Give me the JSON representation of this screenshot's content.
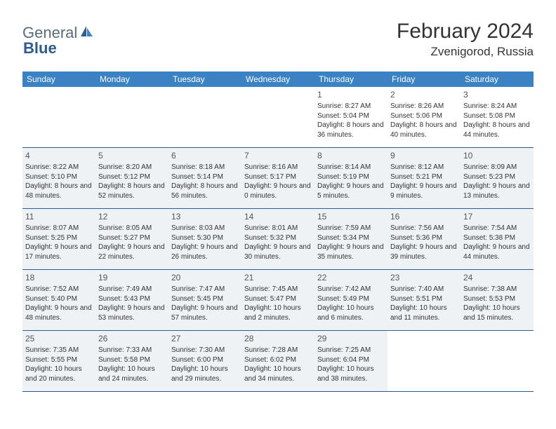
{
  "brand": {
    "part1": "General",
    "part2": "Blue"
  },
  "title": "February 2024",
  "location": "Zvenigorod, Russia",
  "colors": {
    "header_bg": "#3b82c4",
    "header_text": "#ffffff",
    "rule": "#2d5c8f",
    "shade": "#eef2f5",
    "text": "#333333",
    "logo_gray": "#5a6b7a",
    "logo_blue": "#2d5c8f"
  },
  "weekdays": [
    "Sunday",
    "Monday",
    "Tuesday",
    "Wednesday",
    "Thursday",
    "Friday",
    "Saturday"
  ],
  "weeks": [
    [
      {
        "day": "",
        "sunrise": "",
        "sunset": "",
        "daylight": "",
        "shaded": false
      },
      {
        "day": "",
        "sunrise": "",
        "sunset": "",
        "daylight": "",
        "shaded": false
      },
      {
        "day": "",
        "sunrise": "",
        "sunset": "",
        "daylight": "",
        "shaded": false
      },
      {
        "day": "",
        "sunrise": "",
        "sunset": "",
        "daylight": "",
        "shaded": false
      },
      {
        "day": "1",
        "sunrise": "Sunrise: 8:27 AM",
        "sunset": "Sunset: 5:04 PM",
        "daylight": "Daylight: 8 hours and 36 minutes.",
        "shaded": false
      },
      {
        "day": "2",
        "sunrise": "Sunrise: 8:26 AM",
        "sunset": "Sunset: 5:06 PM",
        "daylight": "Daylight: 8 hours and 40 minutes.",
        "shaded": false
      },
      {
        "day": "3",
        "sunrise": "Sunrise: 8:24 AM",
        "sunset": "Sunset: 5:08 PM",
        "daylight": "Daylight: 8 hours and 44 minutes.",
        "shaded": false
      }
    ],
    [
      {
        "day": "4",
        "sunrise": "Sunrise: 8:22 AM",
        "sunset": "Sunset: 5:10 PM",
        "daylight": "Daylight: 8 hours and 48 minutes.",
        "shaded": true
      },
      {
        "day": "5",
        "sunrise": "Sunrise: 8:20 AM",
        "sunset": "Sunset: 5:12 PM",
        "daylight": "Daylight: 8 hours and 52 minutes.",
        "shaded": true
      },
      {
        "day": "6",
        "sunrise": "Sunrise: 8:18 AM",
        "sunset": "Sunset: 5:14 PM",
        "daylight": "Daylight: 8 hours and 56 minutes.",
        "shaded": true
      },
      {
        "day": "7",
        "sunrise": "Sunrise: 8:16 AM",
        "sunset": "Sunset: 5:17 PM",
        "daylight": "Daylight: 9 hours and 0 minutes.",
        "shaded": true
      },
      {
        "day": "8",
        "sunrise": "Sunrise: 8:14 AM",
        "sunset": "Sunset: 5:19 PM",
        "daylight": "Daylight: 9 hours and 5 minutes.",
        "shaded": true
      },
      {
        "day": "9",
        "sunrise": "Sunrise: 8:12 AM",
        "sunset": "Sunset: 5:21 PM",
        "daylight": "Daylight: 9 hours and 9 minutes.",
        "shaded": true
      },
      {
        "day": "10",
        "sunrise": "Sunrise: 8:09 AM",
        "sunset": "Sunset: 5:23 PM",
        "daylight": "Daylight: 9 hours and 13 minutes.",
        "shaded": true
      }
    ],
    [
      {
        "day": "11",
        "sunrise": "Sunrise: 8:07 AM",
        "sunset": "Sunset: 5:25 PM",
        "daylight": "Daylight: 9 hours and 17 minutes.",
        "shaded": true
      },
      {
        "day": "12",
        "sunrise": "Sunrise: 8:05 AM",
        "sunset": "Sunset: 5:27 PM",
        "daylight": "Daylight: 9 hours and 22 minutes.",
        "shaded": true
      },
      {
        "day": "13",
        "sunrise": "Sunrise: 8:03 AM",
        "sunset": "Sunset: 5:30 PM",
        "daylight": "Daylight: 9 hours and 26 minutes.",
        "shaded": true
      },
      {
        "day": "14",
        "sunrise": "Sunrise: 8:01 AM",
        "sunset": "Sunset: 5:32 PM",
        "daylight": "Daylight: 9 hours and 30 minutes.",
        "shaded": true
      },
      {
        "day": "15",
        "sunrise": "Sunrise: 7:59 AM",
        "sunset": "Sunset: 5:34 PM",
        "daylight": "Daylight: 9 hours and 35 minutes.",
        "shaded": true
      },
      {
        "day": "16",
        "sunrise": "Sunrise: 7:56 AM",
        "sunset": "Sunset: 5:36 PM",
        "daylight": "Daylight: 9 hours and 39 minutes.",
        "shaded": true
      },
      {
        "day": "17",
        "sunrise": "Sunrise: 7:54 AM",
        "sunset": "Sunset: 5:38 PM",
        "daylight": "Daylight: 9 hours and 44 minutes.",
        "shaded": true
      }
    ],
    [
      {
        "day": "18",
        "sunrise": "Sunrise: 7:52 AM",
        "sunset": "Sunset: 5:40 PM",
        "daylight": "Daylight: 9 hours and 48 minutes.",
        "shaded": true
      },
      {
        "day": "19",
        "sunrise": "Sunrise: 7:49 AM",
        "sunset": "Sunset: 5:43 PM",
        "daylight": "Daylight: 9 hours and 53 minutes.",
        "shaded": true
      },
      {
        "day": "20",
        "sunrise": "Sunrise: 7:47 AM",
        "sunset": "Sunset: 5:45 PM",
        "daylight": "Daylight: 9 hours and 57 minutes.",
        "shaded": true
      },
      {
        "day": "21",
        "sunrise": "Sunrise: 7:45 AM",
        "sunset": "Sunset: 5:47 PM",
        "daylight": "Daylight: 10 hours and 2 minutes.",
        "shaded": true
      },
      {
        "day": "22",
        "sunrise": "Sunrise: 7:42 AM",
        "sunset": "Sunset: 5:49 PM",
        "daylight": "Daylight: 10 hours and 6 minutes.",
        "shaded": true
      },
      {
        "day": "23",
        "sunrise": "Sunrise: 7:40 AM",
        "sunset": "Sunset: 5:51 PM",
        "daylight": "Daylight: 10 hours and 11 minutes.",
        "shaded": true
      },
      {
        "day": "24",
        "sunrise": "Sunrise: 7:38 AM",
        "sunset": "Sunset: 5:53 PM",
        "daylight": "Daylight: 10 hours and 15 minutes.",
        "shaded": true
      }
    ],
    [
      {
        "day": "25",
        "sunrise": "Sunrise: 7:35 AM",
        "sunset": "Sunset: 5:55 PM",
        "daylight": "Daylight: 10 hours and 20 minutes.",
        "shaded": true
      },
      {
        "day": "26",
        "sunrise": "Sunrise: 7:33 AM",
        "sunset": "Sunset: 5:58 PM",
        "daylight": "Daylight: 10 hours and 24 minutes.",
        "shaded": true
      },
      {
        "day": "27",
        "sunrise": "Sunrise: 7:30 AM",
        "sunset": "Sunset: 6:00 PM",
        "daylight": "Daylight: 10 hours and 29 minutes.",
        "shaded": true
      },
      {
        "day": "28",
        "sunrise": "Sunrise: 7:28 AM",
        "sunset": "Sunset: 6:02 PM",
        "daylight": "Daylight: 10 hours and 34 minutes.",
        "shaded": true
      },
      {
        "day": "29",
        "sunrise": "Sunrise: 7:25 AM",
        "sunset": "Sunset: 6:04 PM",
        "daylight": "Daylight: 10 hours and 38 minutes.",
        "shaded": true
      },
      {
        "day": "",
        "sunrise": "",
        "sunset": "",
        "daylight": "",
        "shaded": false
      },
      {
        "day": "",
        "sunrise": "",
        "sunset": "",
        "daylight": "",
        "shaded": false
      }
    ]
  ]
}
